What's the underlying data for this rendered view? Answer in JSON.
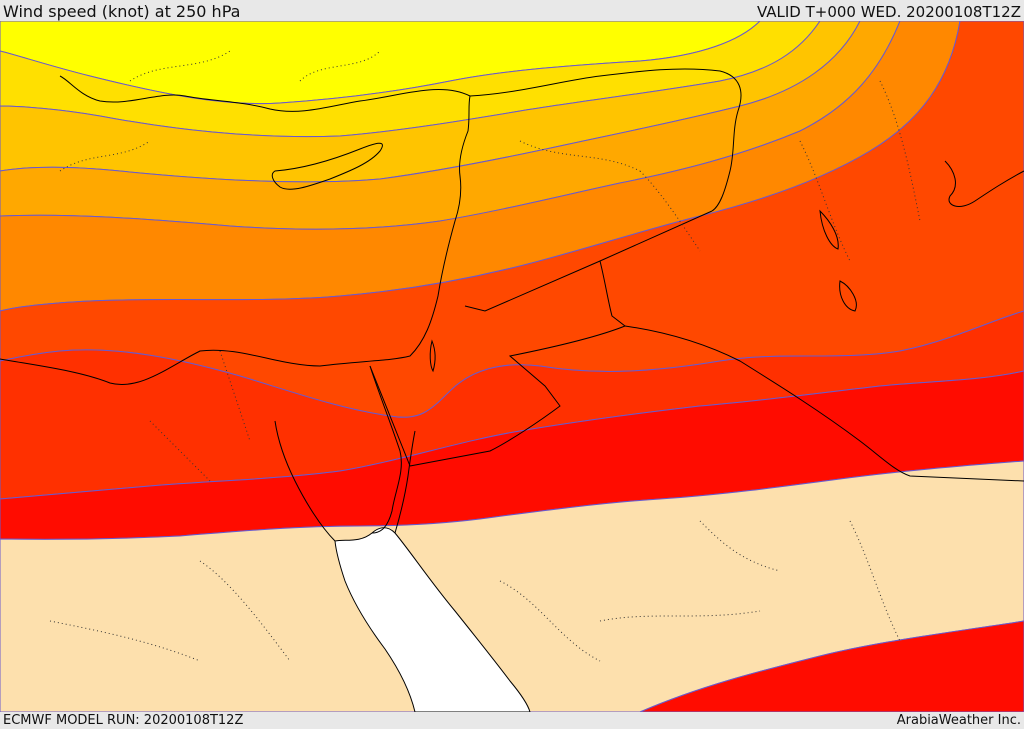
{
  "header": {
    "title": "Wind speed (knot) at 250 hPa",
    "valid": "VALID T+000 WED. 20200108T12Z"
  },
  "footer": {
    "model_run": "ECMWF MODEL RUN: 20200108T12Z",
    "credit": "ArabiaWeather Inc."
  },
  "colors": {
    "band_yellow": "#ffff00",
    "band_gold_light": "#ffe000",
    "band_gold": "#ffc400",
    "band_amber": "#ffa800",
    "band_orange": "#ff8800",
    "band_dark_orange": "#ff6a00",
    "band_red_orange": "#ff4800",
    "band_orange_red": "#ff3000",
    "band_red": "#ff0c00",
    "land_calm": "#fde0ad",
    "sea": "#ffffff",
    "contour_line": "#6a5acd",
    "coastline": "#000000",
    "border": "#000000"
  }
}
